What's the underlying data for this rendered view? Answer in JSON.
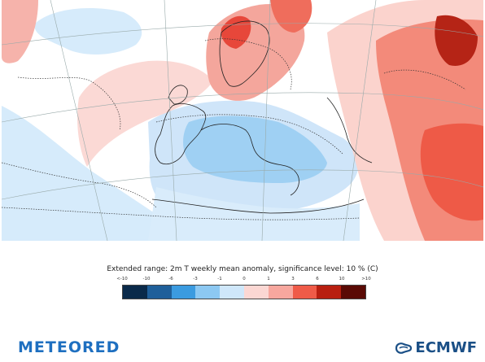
{
  "map": {
    "description_kind": "anomaly-map"
  },
  "legend": {
    "title": "Extended range: 2m T weekly mean anomaly, significance level: 10 % (C)",
    "tick_labels": [
      "<-10",
      "-10",
      "-6",
      "-3",
      "-1",
      "0",
      "1",
      "3",
      "6",
      "10",
      ">10"
    ],
    "colors": [
      "#0a2a4a",
      "#1f5f9a",
      "#3b9be0",
      "#8cc8f2",
      "#cfe7fa",
      "#fbd7d3",
      "#f7a79e",
      "#ef5b48",
      "#b81f10",
      "#5a0a05"
    ]
  },
  "footer": {
    "left_logo": "METEORED",
    "right_logo": "ECMWF"
  }
}
